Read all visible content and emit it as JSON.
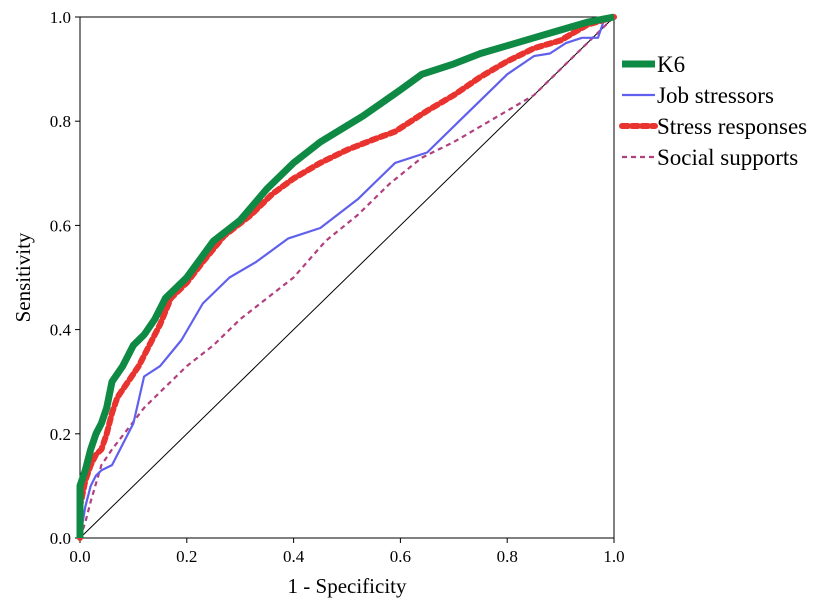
{
  "chart_data": {
    "type": "line",
    "title": "",
    "xlabel": "1 - Specificity",
    "ylabel": "Sensitivity",
    "xlim": [
      0,
      1
    ],
    "ylim": [
      0,
      1
    ],
    "x_ticks": [
      "0.0",
      "0.2",
      "0.4",
      "0.6",
      "0.8",
      "1.0"
    ],
    "y_ticks": [
      "0.0",
      "0.2",
      "0.4",
      "0.6",
      "0.8",
      "1.0"
    ],
    "grid": false,
    "legend_position": "right",
    "reference_diagonal": true,
    "series": [
      {
        "name": "K6",
        "color": "#0e8a45",
        "style": "solid-thick",
        "points": [
          [
            0,
            0
          ],
          [
            0,
            0.1
          ],
          [
            0.01,
            0.13
          ],
          [
            0.02,
            0.17
          ],
          [
            0.03,
            0.2
          ],
          [
            0.04,
            0.22
          ],
          [
            0.05,
            0.25
          ],
          [
            0.06,
            0.3
          ],
          [
            0.08,
            0.33
          ],
          [
            0.1,
            0.37
          ],
          [
            0.12,
            0.39
          ],
          [
            0.14,
            0.42
          ],
          [
            0.16,
            0.46
          ],
          [
            0.2,
            0.5
          ],
          [
            0.25,
            0.57
          ],
          [
            0.3,
            0.61
          ],
          [
            0.35,
            0.67
          ],
          [
            0.4,
            0.72
          ],
          [
            0.45,
            0.76
          ],
          [
            0.53,
            0.81
          ],
          [
            0.6,
            0.86
          ],
          [
            0.64,
            0.89
          ],
          [
            0.7,
            0.91
          ],
          [
            0.75,
            0.93
          ],
          [
            0.8,
            0.945
          ],
          [
            0.85,
            0.96
          ],
          [
            0.9,
            0.975
          ],
          [
            0.95,
            0.99
          ],
          [
            1,
            1
          ]
        ]
      },
      {
        "name": "Job stressors",
        "color": "#6060ee",
        "style": "solid-thin",
        "points": [
          [
            0,
            0
          ],
          [
            0.01,
            0.06
          ],
          [
            0.02,
            0.1
          ],
          [
            0.03,
            0.12
          ],
          [
            0.04,
            0.13
          ],
          [
            0.06,
            0.14
          ],
          [
            0.08,
            0.18
          ],
          [
            0.1,
            0.22
          ],
          [
            0.12,
            0.31
          ],
          [
            0.15,
            0.33
          ],
          [
            0.19,
            0.38
          ],
          [
            0.23,
            0.45
          ],
          [
            0.28,
            0.5
          ],
          [
            0.33,
            0.53
          ],
          [
            0.39,
            0.575
          ],
          [
            0.45,
            0.595
          ],
          [
            0.52,
            0.65
          ],
          [
            0.59,
            0.72
          ],
          [
            0.65,
            0.74
          ],
          [
            0.71,
            0.8
          ],
          [
            0.76,
            0.85
          ],
          [
            0.8,
            0.89
          ],
          [
            0.85,
            0.925
          ],
          [
            0.88,
            0.93
          ],
          [
            0.91,
            0.95
          ],
          [
            0.94,
            0.96
          ],
          [
            0.97,
            0.96
          ],
          [
            0.98,
            0.99
          ],
          [
            1,
            1
          ]
        ]
      },
      {
        "name": "Stress responses",
        "color": "#e8332f",
        "style": "dotted-thick",
        "points": [
          [
            0,
            0
          ],
          [
            0,
            0.06
          ],
          [
            0.01,
            0.11
          ],
          [
            0.02,
            0.14
          ],
          [
            0.03,
            0.16
          ],
          [
            0.04,
            0.17
          ],
          [
            0.05,
            0.2
          ],
          [
            0.06,
            0.24
          ],
          [
            0.07,
            0.27
          ],
          [
            0.09,
            0.3
          ],
          [
            0.11,
            0.33
          ],
          [
            0.13,
            0.37
          ],
          [
            0.15,
            0.41
          ],
          [
            0.17,
            0.46
          ],
          [
            0.2,
            0.49
          ],
          [
            0.23,
            0.53
          ],
          [
            0.27,
            0.58
          ],
          [
            0.32,
            0.62
          ],
          [
            0.36,
            0.66
          ],
          [
            0.4,
            0.69
          ],
          [
            0.45,
            0.72
          ],
          [
            0.5,
            0.745
          ],
          [
            0.55,
            0.765
          ],
          [
            0.59,
            0.78
          ],
          [
            0.65,
            0.82
          ],
          [
            0.7,
            0.85
          ],
          [
            0.75,
            0.885
          ],
          [
            0.8,
            0.915
          ],
          [
            0.85,
            0.94
          ],
          [
            0.9,
            0.955
          ],
          [
            0.95,
            0.985
          ],
          [
            1,
            1
          ]
        ]
      },
      {
        "name": "Social supports",
        "color": "#b23f7e",
        "style": "dashed-thin",
        "points": [
          [
            0,
            0
          ],
          [
            0.01,
            0.03
          ],
          [
            0.02,
            0.07
          ],
          [
            0.04,
            0.14
          ],
          [
            0.06,
            0.17
          ],
          [
            0.09,
            0.21
          ],
          [
            0.12,
            0.25
          ],
          [
            0.15,
            0.28
          ],
          [
            0.2,
            0.33
          ],
          [
            0.25,
            0.37
          ],
          [
            0.3,
            0.42
          ],
          [
            0.35,
            0.46
          ],
          [
            0.4,
            0.5
          ],
          [
            0.46,
            0.57
          ],
          [
            0.52,
            0.62
          ],
          [
            0.58,
            0.68
          ],
          [
            0.64,
            0.73
          ],
          [
            0.7,
            0.76
          ],
          [
            0.75,
            0.79
          ],
          [
            0.8,
            0.82
          ],
          [
            0.85,
            0.85
          ],
          [
            0.9,
            0.9
          ],
          [
            0.95,
            0.95
          ],
          [
            1,
            1
          ]
        ]
      }
    ]
  }
}
